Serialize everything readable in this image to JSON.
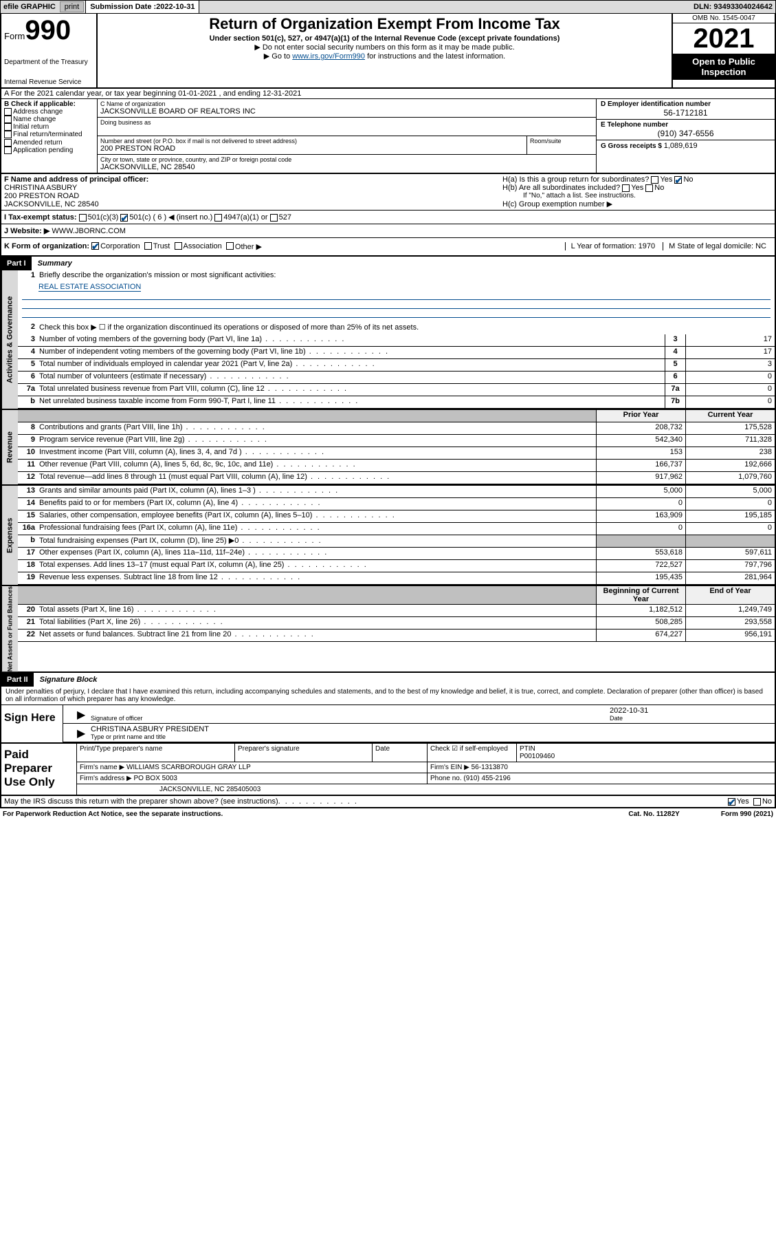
{
  "top": {
    "efile": "efile GRAPHIC",
    "print": "print",
    "sub_label": "Submission Date : ",
    "sub_date": "2022-10-31",
    "dln": "DLN: 93493304024642"
  },
  "header": {
    "form_word": "Form",
    "form_num": "990",
    "dept": "Department of the Treasury",
    "irs": "Internal Revenue Service",
    "title": "Return of Organization Exempt From Income Tax",
    "sub": "Under section 501(c), 527, or 4947(a)(1) of the Internal Revenue Code (except private foundations)",
    "note1": "▶ Do not enter social security numbers on this form as it may be made public.",
    "note2_pre": "▶ Go to ",
    "note2_link": "www.irs.gov/Form990",
    "note2_post": " for instructions and the latest information.",
    "omb": "OMB No. 1545-0047",
    "year": "2021",
    "open": "Open to Public Inspection"
  },
  "row_a": "A For the 2021 calendar year, or tax year beginning 01-01-2021   , and ending 12-31-2021",
  "col_b": {
    "hdr": "B Check if applicable:",
    "items": [
      "Address change",
      "Name change",
      "Initial return",
      "Final return/terminated",
      "Amended return",
      "Application pending"
    ]
  },
  "org": {
    "name_lbl": "C Name of organization",
    "name": "JACKSONVILLE BOARD OF REALTORS INC",
    "dba_lbl": "Doing business as",
    "addr_lbl": "Number and street (or P.O. box if mail is not delivered to street address)",
    "addr": "200 PRESTON ROAD",
    "suite_lbl": "Room/suite",
    "city_lbl": "City or town, state or province, country, and ZIP or foreign postal code",
    "city": "JACKSONVILLE, NC  28540",
    "ein_lbl": "D Employer identification number",
    "ein": "56-1712181",
    "tel_lbl": "E Telephone number",
    "tel": "(910) 347-6556",
    "gross_lbl": "G Gross receipts $ ",
    "gross": "1,089,619"
  },
  "f": {
    "lbl": "F Name and address of principal officer:",
    "name": "CHRISTINA ASBURY",
    "addr": "200 PRESTON ROAD",
    "city": "JACKSONVILLE, NC  28540",
    "ha": "H(a)  Is this a group return for subordinates?",
    "hb": "H(b)  Are all subordinates included?",
    "hb_note": "If \"No,\" attach a list. See instructions.",
    "hc": "H(c)  Group exemption number ▶",
    "yes": "Yes",
    "no": "No"
  },
  "row_i": {
    "lbl": "I    Tax-exempt status:",
    "c3": "501(c)(3)",
    "c": "501(c) ( 6 ) ◀ (insert no.)",
    "a1": "4947(a)(1) or",
    "s527": "527"
  },
  "row_j": {
    "lbl": "J   Website: ▶ ",
    "val": "WWW.JBORNC.COM"
  },
  "row_k": {
    "lbl": "K Form of organization:",
    "corp": "Corporation",
    "trust": "Trust",
    "assoc": "Association",
    "other": "Other ▶",
    "l": "L Year of formation: 1970",
    "m": "M State of legal domicile: NC"
  },
  "part1": {
    "hdr": "Part I",
    "title": "Summary",
    "q1": "Briefly describe the organization's mission or most significant activities:",
    "mission": "REAL ESTATE ASSOCIATION",
    "q2": "Check this box ▶ ☐  if the organization discontinued its operations or disposed of more than 25% of its net assets."
  },
  "tabs": {
    "gov": "Activities & Governance",
    "rev": "Revenue",
    "exp": "Expenses",
    "net": "Net Assets or Fund Balances"
  },
  "gov_rows": [
    {
      "n": "3",
      "desc": "Number of voting members of the governing body (Part VI, line 1a)",
      "box": "3",
      "val": "17"
    },
    {
      "n": "4",
      "desc": "Number of independent voting members of the governing body (Part VI, line 1b)",
      "box": "4",
      "val": "17"
    },
    {
      "n": "5",
      "desc": "Total number of individuals employed in calendar year 2021 (Part V, line 2a)",
      "box": "5",
      "val": "3"
    },
    {
      "n": "6",
      "desc": "Total number of volunteers (estimate if necessary)",
      "box": "6",
      "val": "0"
    },
    {
      "n": "7a",
      "desc": "Total unrelated business revenue from Part VIII, column (C), line 12",
      "box": "7a",
      "val": "0"
    },
    {
      "n": "b",
      "desc": "Net unrelated business taxable income from Form 990-T, Part I, line 11",
      "box": "7b",
      "val": "0"
    }
  ],
  "year_hdr": {
    "prior": "Prior Year",
    "current": "Current Year",
    "begin": "Beginning of Current Year",
    "end": "End of Year"
  },
  "rev_rows": [
    {
      "n": "8",
      "desc": "Contributions and grants (Part VIII, line 1h)",
      "p": "208,732",
      "c": "175,528"
    },
    {
      "n": "9",
      "desc": "Program service revenue (Part VIII, line 2g)",
      "p": "542,340",
      "c": "711,328"
    },
    {
      "n": "10",
      "desc": "Investment income (Part VIII, column (A), lines 3, 4, and 7d )",
      "p": "153",
      "c": "238"
    },
    {
      "n": "11",
      "desc": "Other revenue (Part VIII, column (A), lines 5, 6d, 8c, 9c, 10c, and 11e)",
      "p": "166,737",
      "c": "192,666"
    },
    {
      "n": "12",
      "desc": "Total revenue—add lines 8 through 11 (must equal Part VIII, column (A), line 12)",
      "p": "917,962",
      "c": "1,079,760"
    }
  ],
  "exp_rows": [
    {
      "n": "13",
      "desc": "Grants and similar amounts paid (Part IX, column (A), lines 1–3 )",
      "p": "5,000",
      "c": "5,000"
    },
    {
      "n": "14",
      "desc": "Benefits paid to or for members (Part IX, column (A), line 4)",
      "p": "0",
      "c": "0"
    },
    {
      "n": "15",
      "desc": "Salaries, other compensation, employee benefits (Part IX, column (A), lines 5–10)",
      "p": "163,909",
      "c": "195,185"
    },
    {
      "n": "16a",
      "desc": "Professional fundraising fees (Part IX, column (A), line 11e)",
      "p": "0",
      "c": "0"
    },
    {
      "n": "b",
      "desc": "Total fundraising expenses (Part IX, column (D), line 25) ▶0",
      "p": "",
      "c": "",
      "shade": true
    },
    {
      "n": "17",
      "desc": "Other expenses (Part IX, column (A), lines 11a–11d, 11f–24e)",
      "p": "553,618",
      "c": "597,611"
    },
    {
      "n": "18",
      "desc": "Total expenses. Add lines 13–17 (must equal Part IX, column (A), line 25)",
      "p": "722,527",
      "c": "797,796"
    },
    {
      "n": "19",
      "desc": "Revenue less expenses. Subtract line 18 from line 12",
      "p": "195,435",
      "c": "281,964"
    }
  ],
  "net_rows": [
    {
      "n": "20",
      "desc": "Total assets (Part X, line 16)",
      "p": "1,182,512",
      "c": "1,249,749"
    },
    {
      "n": "21",
      "desc": "Total liabilities (Part X, line 26)",
      "p": "508,285",
      "c": "293,558"
    },
    {
      "n": "22",
      "desc": "Net assets or fund balances. Subtract line 21 from line 20",
      "p": "674,227",
      "c": "956,191"
    }
  ],
  "part2": {
    "hdr": "Part II",
    "title": "Signature Block",
    "decl": "Under penalties of perjury, I declare that I have examined this return, including accompanying schedules and statements, and to the best of my knowledge and belief, it is true, correct, and complete. Declaration of preparer (other than officer) is based on all information of which preparer has any knowledge.",
    "sign_here": "Sign Here",
    "sig_officer": "Signature of officer",
    "sig_date": "2022-10-31",
    "date_lbl": "Date",
    "officer_name": "CHRISTINA ASBURY PRESIDENT",
    "type_name": "Type or print name and title",
    "paid": "Paid Preparer Use Only",
    "prep_name_lbl": "Print/Type preparer's name",
    "prep_sig_lbl": "Preparer's signature",
    "check_self": "Check ☑ if self-employed",
    "ptin_lbl": "PTIN",
    "ptin": "P00109460",
    "firm_name_lbl": "Firm's name   ▶",
    "firm_name": "WILLIAMS SCARBOROUGH GRAY LLP",
    "firm_ein_lbl": "Firm's EIN ▶",
    "firm_ein": "56-1313870",
    "firm_addr_lbl": "Firm's address ▶",
    "firm_addr1": "PO BOX 5003",
    "firm_addr2": "JACKSONVILLE, NC  285405003",
    "phone_lbl": "Phone no.",
    "phone": "(910) 455-2196",
    "discuss": "May the IRS discuss this return with the preparer shown above? (see instructions)"
  },
  "footer": {
    "notice": "For Paperwork Reduction Act Notice, see the separate instructions.",
    "cat": "Cat. No. 11282Y",
    "form": "Form 990 (2021)"
  }
}
